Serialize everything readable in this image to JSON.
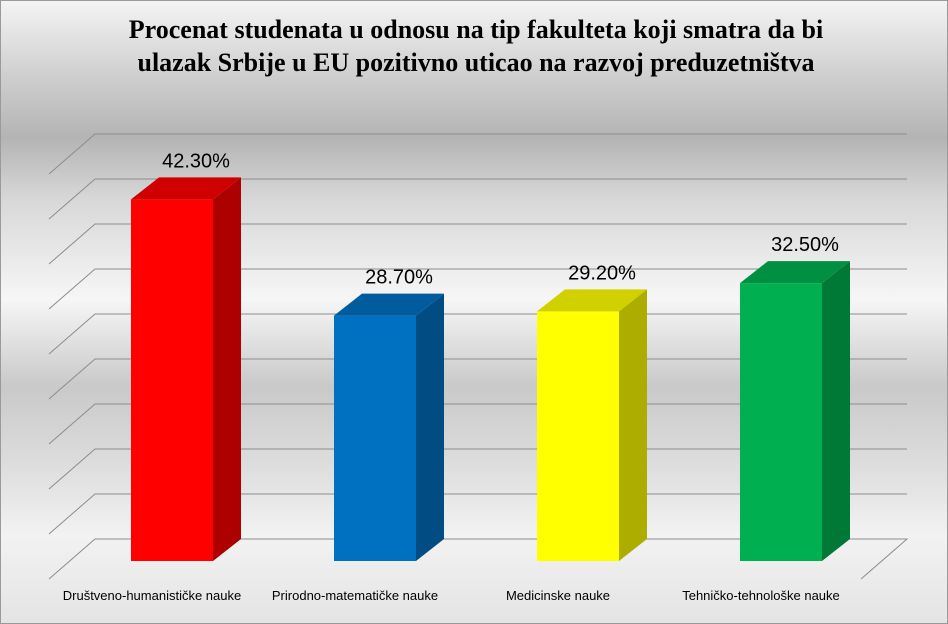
{
  "chart_data": {
    "type": "bar3d",
    "title": "Procenat studenata u odnosu na tip fakulteta koji smatra da bi ulazak Srbije u EU pozitivno uticao na razvoj preduzetništva",
    "categories": [
      "Društveno-humanističke nauke",
      "Prirodno-matematičke nauke",
      "Medicinske nauke",
      "Tehničko-tehnološke nauke"
    ],
    "values": [
      42.3,
      28.7,
      29.2,
      32.5
    ],
    "value_labels": [
      "42.30%",
      "28.70%",
      "29.20%",
      "32.50%"
    ],
    "colors": [
      "#ff0000",
      "#0070c0",
      "#ffff00",
      "#00b050"
    ],
    "ylim": [
      0,
      45
    ],
    "yticks": [
      0,
      5,
      10,
      15,
      20,
      25,
      30,
      35,
      40,
      45
    ],
    "grid": true
  }
}
